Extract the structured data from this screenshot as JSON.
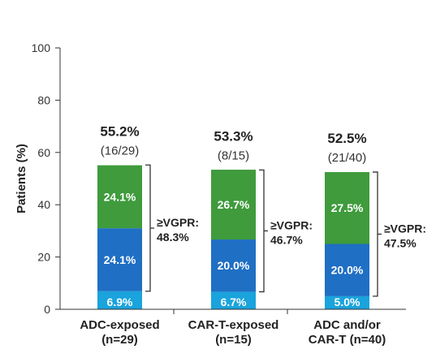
{
  "chart_data": {
    "type": "bar",
    "stacked": true,
    "ylabel": "Patients (%)",
    "ylim": [
      0,
      100
    ],
    "yticks": [
      0,
      20,
      40,
      60,
      80,
      100
    ],
    "grid": false,
    "categories": [
      "ADC-exposed\n(n=29)",
      "CAR-T-exposed\n(n=15)",
      "ADC and/or\nCAR-T (n=40)"
    ],
    "series": [
      {
        "values": [
          6.9,
          6.7,
          5.0
        ],
        "labels": [
          "6.9%",
          "6.7%",
          "5.0%"
        ],
        "color": "#1aa3dc"
      },
      {
        "values": [
          24.1,
          20.0,
          20.0
        ],
        "labels": [
          "24.1%",
          "20.0%",
          "20.0%"
        ],
        "color": "#1f6fc4"
      },
      {
        "values": [
          24.1,
          26.7,
          27.5
        ],
        "labels": [
          "24.1%",
          "26.7%",
          "27.5%"
        ],
        "color": "#3f9b3c"
      }
    ],
    "totals": [
      {
        "pct": "55.2%",
        "frac": "(16/29)",
        "value": 55.2
      },
      {
        "pct": "53.3%",
        "frac": "(8/15)",
        "value": 53.3
      },
      {
        "pct": "52.5%",
        "frac": "(21/40)",
        "value": 52.5
      }
    ],
    "brackets": [
      {
        "label": "≥VGPR:",
        "value": "48.3%",
        "from": 6.9,
        "to": 55.2
      },
      {
        "label": "≥VGPR:",
        "value": "46.7%",
        "from": 6.7,
        "to": 53.3
      },
      {
        "label": "≥VGPR:",
        "value": "47.5%",
        "from": 5.0,
        "to": 52.5
      }
    ]
  }
}
